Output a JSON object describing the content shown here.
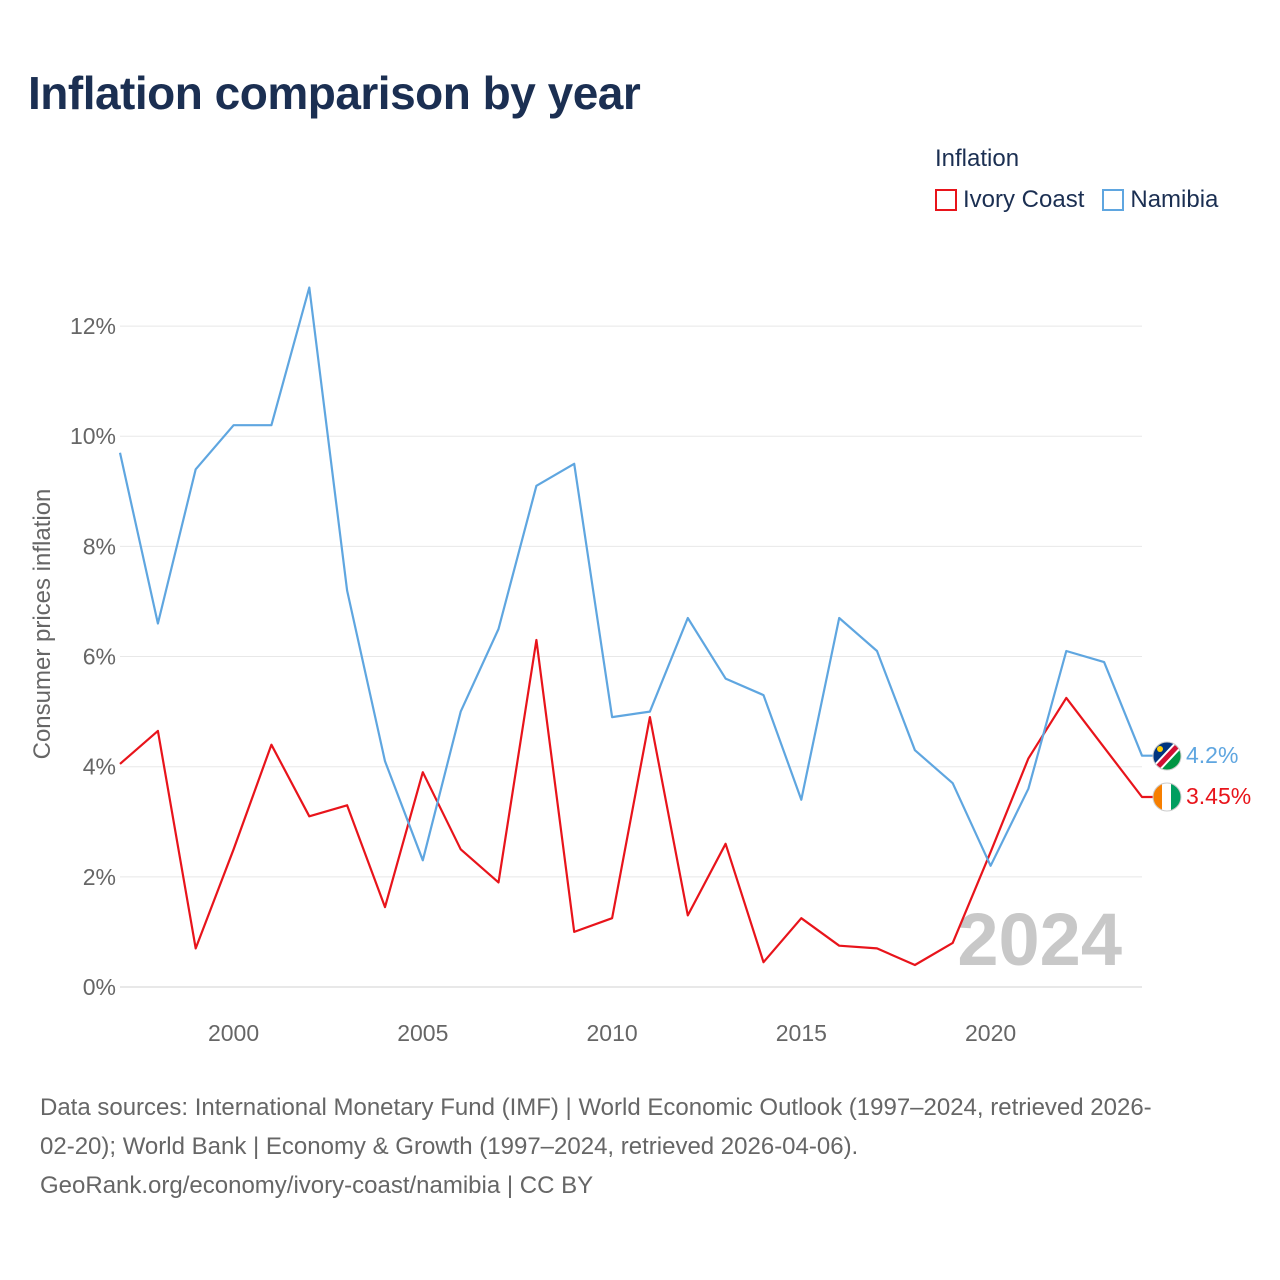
{
  "title": "Inflation comparison by year",
  "legend": {
    "title": "Inflation",
    "items": [
      {
        "label": "Ivory Coast",
        "color": "#e8141b"
      },
      {
        "label": "Namibia",
        "color": "#5fa6e0"
      }
    ]
  },
  "chart_data": {
    "type": "line",
    "ylabel": "Consumer prices inflation",
    "xlabel": "",
    "ylim": [
      0,
      13.2
    ],
    "xlim": [
      1997,
      2024
    ],
    "yticks": [
      0,
      2,
      4,
      6,
      8,
      10,
      12
    ],
    "ytick_labels": [
      "0%",
      "2%",
      "4%",
      "6%",
      "8%",
      "10%",
      "12%"
    ],
    "xticks": [
      2000,
      2005,
      2010,
      2015,
      2020
    ],
    "xtick_labels": [
      "2000",
      "2005",
      "2010",
      "2015",
      "2020"
    ],
    "grid": true,
    "watermark_year": "2024",
    "x": [
      1997,
      1998,
      1999,
      2000,
      2001,
      2002,
      2003,
      2004,
      2005,
      2006,
      2007,
      2008,
      2009,
      2010,
      2011,
      2012,
      2013,
      2014,
      2015,
      2016,
      2017,
      2018,
      2019,
      2020,
      2021,
      2022,
      2023,
      2024
    ],
    "series": [
      {
        "name": "Ivory Coast",
        "color": "#e8141b",
        "end_label": "3.45%",
        "values": [
          4.05,
          4.65,
          0.7,
          2.5,
          4.4,
          3.1,
          3.3,
          1.45,
          3.9,
          2.5,
          1.9,
          6.3,
          1.0,
          1.25,
          4.9,
          1.3,
          2.6,
          0.45,
          1.25,
          0.75,
          0.7,
          0.4,
          0.8,
          2.45,
          4.15,
          5.25,
          4.35,
          3.45
        ]
      },
      {
        "name": "Namibia",
        "color": "#5fa6e0",
        "end_label": "4.2%",
        "values": [
          9.7,
          6.6,
          9.4,
          10.2,
          10.2,
          12.7,
          7.2,
          4.1,
          2.3,
          5.0,
          6.5,
          9.1,
          9.5,
          4.9,
          5.0,
          6.7,
          5.6,
          5.3,
          3.4,
          6.7,
          6.1,
          4.3,
          3.7,
          2.2,
          3.6,
          6.1,
          5.9,
          4.2
        ]
      }
    ]
  },
  "footer": {
    "line1": "Data sources: International Monetary Fund (IMF) | World Economic Outlook (1997–2024, retrieved 2026-",
    "line2": "02-20); World Bank | Economy & Growth (1997–2024, retrieved 2026-04-06).",
    "line3": "GeoRank.org/economy/ivory-coast/namibia | CC BY"
  }
}
